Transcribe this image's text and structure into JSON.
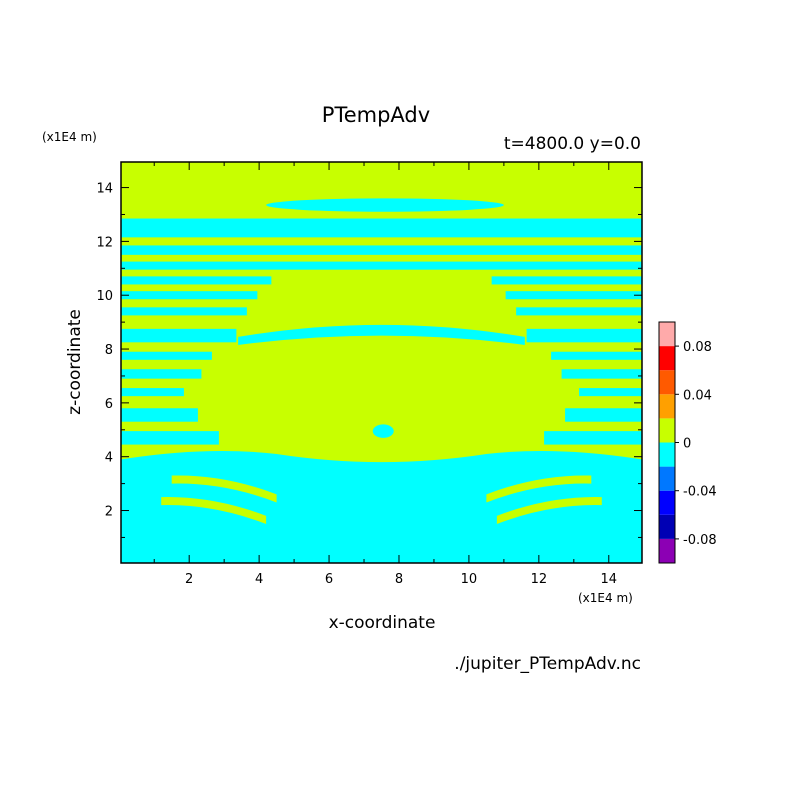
{
  "chart_data": {
    "type": "heatmap",
    "title": "PTempAdv",
    "subtitle": "t=4800.0 y=0.0",
    "xlabel": "x-coordinate",
    "ylabel": "z-coordinate",
    "x_unit": "(x1E4 m)",
    "y_unit": "(x1E4 m)",
    "xlim": [
      0.05,
      14.95
    ],
    "ylim": [
      0.05,
      14.95
    ],
    "x_ticks": [
      2,
      4,
      6,
      8,
      10,
      12,
      14
    ],
    "y_ticks": [
      2,
      4,
      6,
      8,
      10,
      12,
      14
    ],
    "x_tick_labels": [
      "2",
      "4",
      "6",
      "8",
      "10",
      "12",
      "14"
    ],
    "y_tick_labels": [
      "2",
      "4",
      "6",
      "8",
      "10",
      "12",
      "14"
    ],
    "field_summary": "Mostly yellow-green (0 to 0.02) with cyan (-0.02 to 0) horizontal bands; symmetric about x=7.5",
    "colorbar": {
      "levels": [
        -0.1,
        -0.08,
        -0.06,
        -0.04,
        -0.02,
        0,
        0.02,
        0.04,
        0.06,
        0.08,
        0.1
      ],
      "colors": [
        "#8c00b4",
        "#0000b4",
        "#0000ff",
        "#0078ff",
        "#00ffff",
        "#c8ff00",
        "#ffa000",
        "#ff5a00",
        "#ff0000",
        "#ffaaaa"
      ],
      "tick_values": [
        0.08,
        0.04,
        0,
        -0.04,
        -0.08
      ],
      "tick_labels": [
        "0.08",
        "0.04",
        "0",
        "-0.04",
        "-0.08"
      ]
    }
  },
  "footer": {
    "filename": "./jupiter_PTempAdv.nc"
  }
}
